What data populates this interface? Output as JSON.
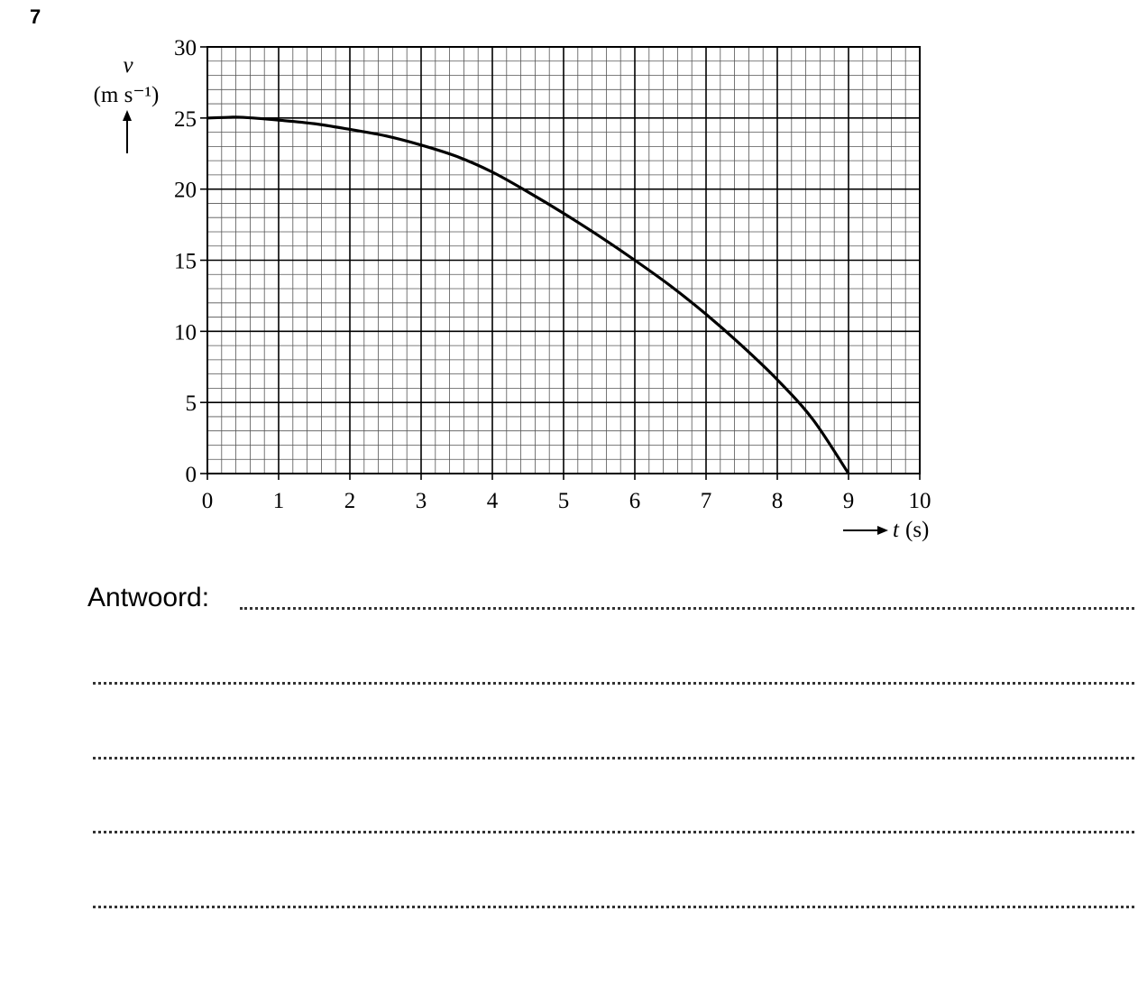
{
  "question_number": "7",
  "chart_data": {
    "type": "line",
    "ylabel": "v",
    "yunit": "(m s⁻¹)",
    "xlabel": "t",
    "xunit": "(s)",
    "x": [
      0,
      0.3,
      0.5,
      1,
      1.5,
      2,
      2.5,
      3,
      3.5,
      4,
      4.5,
      5,
      5.5,
      6,
      6.5,
      7,
      7.5,
      8,
      8.5,
      9
    ],
    "values": [
      25,
      25.05,
      25.05,
      24.85,
      24.6,
      24.2,
      23.75,
      23.1,
      22.3,
      21.2,
      19.8,
      18.3,
      16.7,
      15.0,
      13.2,
      11.2,
      9.0,
      6.6,
      3.8,
      0
    ],
    "color": "#000000",
    "xlim": [
      0,
      10
    ],
    "ylim": [
      0,
      30
    ],
    "xticks": [
      0,
      1,
      2,
      3,
      4,
      5,
      6,
      7,
      8,
      9,
      10
    ],
    "yticks": [
      0,
      5,
      10,
      15,
      20,
      25,
      30
    ],
    "grid": true
  },
  "answer": {
    "label": "Antwoord:"
  }
}
